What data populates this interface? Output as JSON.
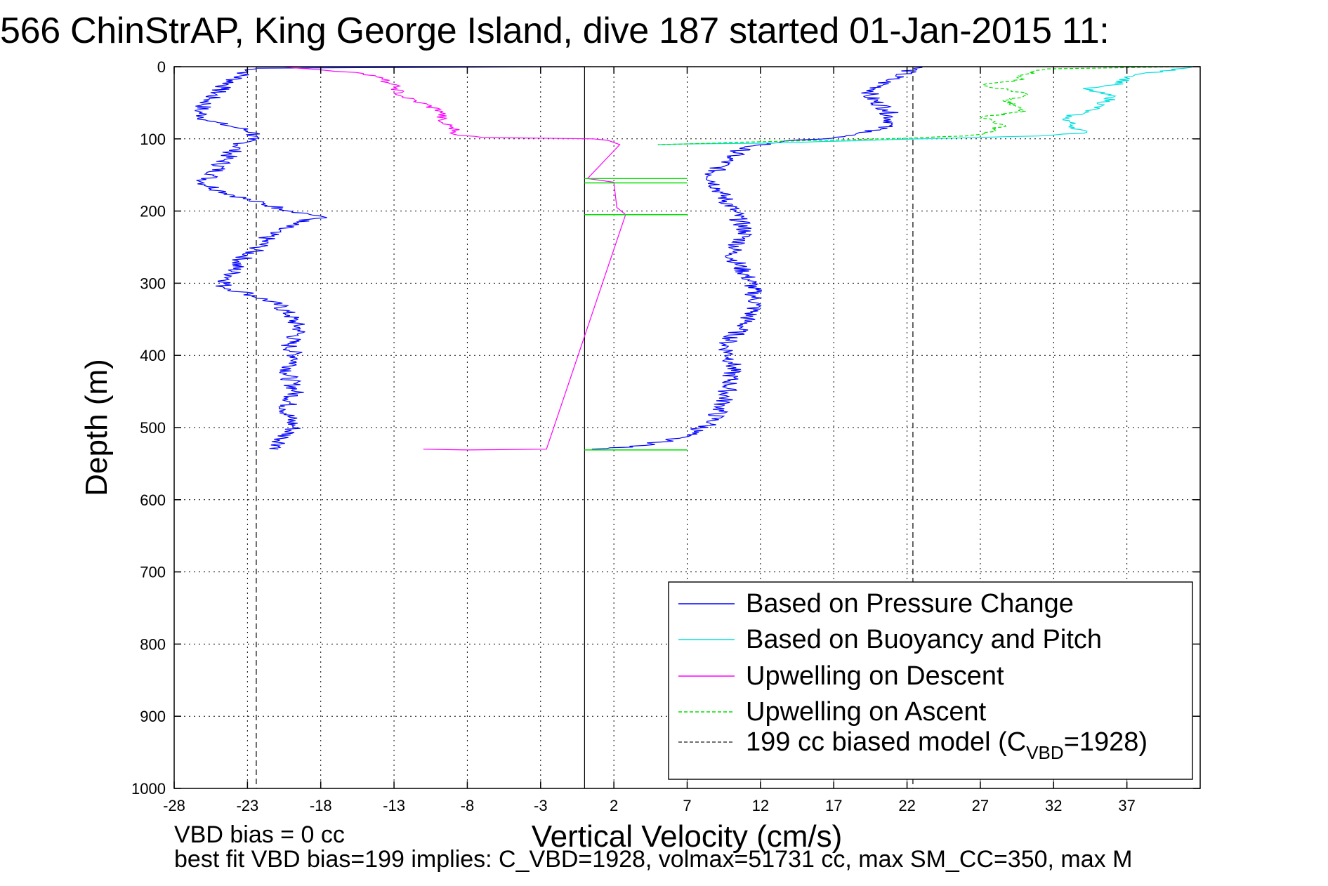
{
  "chart_data": {
    "type": "line",
    "title": "566 ChinStrAP, King George Island, dive 187 started 01-Jan-2015 11:",
    "xlabel": "Vertical Velocity (cm/s)",
    "ylabel": "Depth (m)",
    "xlim": [
      -28,
      42
    ],
    "ylim": [
      0,
      1000
    ],
    "y_reversed": true,
    "grid": true,
    "legend_position": "bottom-right",
    "x_ticks": [
      "-28",
      "-23",
      "-18",
      "-13",
      "-8",
      "-3",
      "2",
      "7",
      "12",
      "17",
      "22",
      "27",
      "32",
      "37"
    ],
    "y_ticks": [
      "0",
      "100",
      "200",
      "300",
      "400",
      "500",
      "600",
      "700",
      "800",
      "900",
      "1000"
    ],
    "series": [
      {
        "name": "Based on Pressure Change",
        "color": "#0000ff",
        "style": "solid",
        "points": [
          [
            0,
            0
          ],
          [
            -22.4,
            2
          ],
          [
            -23.3,
            10
          ],
          [
            -24.8,
            30
          ],
          [
            -25.6,
            45
          ],
          [
            -26.3,
            62
          ],
          [
            -25.7,
            75
          ],
          [
            -23.6,
            85
          ],
          [
            -22.4,
            92
          ],
          [
            -22.9,
            100
          ],
          [
            -23.9,
            115
          ],
          [
            -24.6,
            130
          ],
          [
            -25.3,
            150
          ],
          [
            -26.1,
            160
          ],
          [
            -24.8,
            172
          ],
          [
            -22.9,
            185
          ],
          [
            -20.6,
            197
          ],
          [
            -17.8,
            208
          ],
          [
            -19.6,
            215
          ],
          [
            -21.4,
            230
          ],
          [
            -22.2,
            250
          ],
          [
            -23.6,
            270
          ],
          [
            -24.1,
            290
          ],
          [
            -24.7,
            305
          ],
          [
            -22.8,
            315
          ],
          [
            -20.9,
            330
          ],
          [
            -20.1,
            345
          ],
          [
            -19.4,
            365
          ],
          [
            -20.2,
            385
          ],
          [
            -19.6,
            405
          ],
          [
            -20.3,
            425
          ],
          [
            -19.7,
            450
          ],
          [
            -20.4,
            475
          ],
          [
            -19.8,
            500
          ],
          [
            -20.6,
            515
          ],
          [
            -20.9,
            530
          ],
          [
            22.8,
            0
          ],
          [
            20.6,
            20
          ],
          [
            19.3,
            40
          ],
          [
            20.7,
            60
          ],
          [
            21.0,
            78
          ],
          [
            19.6,
            90
          ],
          [
            17.0,
            98
          ],
          [
            13.4,
            104
          ],
          [
            10.9,
            112
          ],
          [
            10.0,
            125
          ],
          [
            8.6,
            150
          ],
          [
            9.3,
            175
          ],
          [
            10.2,
            200
          ],
          [
            11.0,
            230
          ],
          [
            10.0,
            260
          ],
          [
            11.4,
            300
          ],
          [
            11.7,
            330
          ],
          [
            10.8,
            360
          ],
          [
            9.6,
            385
          ],
          [
            10.1,
            410
          ],
          [
            9.9,
            440
          ],
          [
            9.4,
            470
          ],
          [
            8.6,
            495
          ],
          [
            7.0,
            510
          ],
          [
            5.2,
            520
          ],
          [
            3.3,
            527
          ],
          [
            0.5,
            530
          ]
        ]
      },
      {
        "name": "Based on Buoyancy and Pitch",
        "color": "#00e0e0",
        "style": "solid",
        "points": [
          [
            41.5,
            0
          ],
          [
            37.5,
            12
          ],
          [
            36.2,
            25
          ],
          [
            34.0,
            30
          ],
          [
            36.1,
            42
          ],
          [
            34.6,
            60
          ],
          [
            32.8,
            70
          ],
          [
            33.3,
            82
          ],
          [
            34.1,
            92
          ],
          [
            31.0,
            96
          ],
          [
            25.0,
            99
          ],
          [
            12.0,
            106
          ],
          [
            7.0,
            107
          ],
          [
            5.0,
            108
          ]
        ]
      },
      {
        "name": "Upwelling on Descent",
        "color": "#ff00ff",
        "style": "solid",
        "points": [
          [
            -20.5,
            0
          ],
          [
            -15.6,
            8
          ],
          [
            -14.2,
            14
          ],
          [
            -13.4,
            22
          ],
          [
            -12.8,
            30
          ],
          [
            -12.6,
            40
          ],
          [
            -11.2,
            50
          ],
          [
            -9.7,
            62
          ],
          [
            -9.9,
            76
          ],
          [
            -9.0,
            84
          ],
          [
            -8.6,
            95
          ],
          [
            -7.0,
            98
          ],
          [
            0.6,
            100
          ],
          [
            1.6,
            102
          ],
          [
            2.4,
            108
          ],
          [
            0.2,
            155
          ],
          [
            2.0,
            160
          ],
          [
            2.2,
            195
          ],
          [
            2.8,
            205
          ],
          [
            -2.6,
            530
          ],
          [
            -8.0,
            531
          ],
          [
            -11.0,
            530
          ]
        ]
      },
      {
        "name": "Upwelling on Ascent",
        "color": "#00e000",
        "style": "dashed",
        "points": [
          [
            41.0,
            0
          ],
          [
            31.5,
            3
          ],
          [
            30.2,
            10
          ],
          [
            29.4,
            20
          ],
          [
            27.2,
            25
          ],
          [
            30.2,
            38
          ],
          [
            28.6,
            48
          ],
          [
            30.1,
            62
          ],
          [
            27.1,
            70
          ],
          [
            28.5,
            80
          ],
          [
            27.9,
            90
          ],
          [
            26.0,
            96
          ],
          [
            22.0,
            99
          ],
          [
            10.0,
            105
          ],
          [
            7.0,
            107
          ],
          [
            5.0,
            108
          ]
        ]
      },
      {
        "name": "199 cc biased model (C",
        "name_subscript": "VBD",
        "name_suffix": "=1928)",
        "color": "#404040",
        "style": "dashed",
        "points": [
          [
            -22.4,
            0
          ],
          [
            -22.4,
            1000
          ],
          [
            22.4,
            0
          ],
          [
            22.4,
            1000
          ]
        ]
      }
    ],
    "green_ascent_segments": [
      [
        0,
        155,
        7,
        155
      ],
      [
        0,
        161,
        7,
        161
      ],
      [
        0,
        205,
        7,
        205
      ],
      [
        0,
        531,
        7,
        531
      ]
    ],
    "zero_line_x": 0
  },
  "annotations": {
    "bias_label": "VBD bias = 0 cc",
    "fit_label": "best fit VBD bias=199 implies: C_VBD=1928, volmax=51731 cc, max SM_CC=350, max M"
  }
}
